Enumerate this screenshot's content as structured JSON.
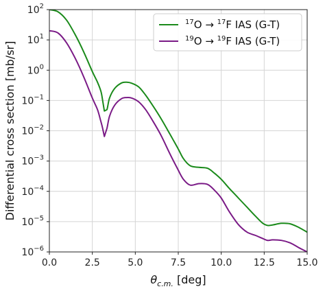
{
  "chart_data": {
    "type": "line",
    "title": "",
    "xlabel_main": "θ",
    "xlabel_sub": "c.m.",
    "xlabel_unit": " [deg]",
    "ylabel": "Differential cross section [mb/sr]",
    "xlim": [
      0,
      15
    ],
    "ylim_log10": [
      -6,
      2
    ],
    "y_scale": "log",
    "grid": true,
    "legend_position": "top-right",
    "x_ticks": [
      "0.0",
      "2.5",
      "5.0",
      "7.5",
      "10.0",
      "12.5",
      "15.0"
    ],
    "x_tick_values": [
      0,
      2.5,
      5,
      7.5,
      10,
      12.5,
      15
    ],
    "y_tick_exponents": [
      -6,
      -5,
      -4,
      -3,
      -2,
      -1,
      0,
      1,
      2
    ],
    "y_tick_base": "10",
    "series": [
      {
        "legend": {
          "m1": "17",
          "a": "O",
          "arrow": " → ",
          "m2": "17",
          "b": "F IAS (G-T)"
        },
        "color": "#1a8a1a",
        "x": [
          0,
          0.5,
          1.0,
          1.5,
          2.0,
          2.5,
          2.8,
          3.0,
          3.1,
          3.2,
          3.35,
          3.5,
          3.8,
          4.2,
          4.5,
          4.8,
          5.2,
          5.6,
          6.0,
          6.5,
          7.0,
          7.5,
          7.8,
          8.2,
          8.7,
          9.2,
          9.6,
          10.0,
          10.5,
          11.0,
          11.5,
          12.0,
          12.4,
          12.7,
          13.0,
          13.5,
          14.0,
          14.5,
          15.0
        ],
        "y": [
          100,
          85,
          45,
          15,
          4,
          0.9,
          0.4,
          0.2,
          0.1,
          0.045,
          0.05,
          0.12,
          0.25,
          0.38,
          0.4,
          0.37,
          0.28,
          0.15,
          0.07,
          0.025,
          0.008,
          0.0025,
          0.0012,
          0.0007,
          0.00062,
          0.00058,
          0.0004,
          0.00025,
          0.00012,
          6e-05,
          3e-05,
          1.5e-05,
          9e-06,
          7.5e-06,
          7.8e-06,
          8.8e-06,
          8.5e-06,
          6.5e-06,
          4.5e-06
        ]
      },
      {
        "legend": {
          "m1": "19",
          "a": "O",
          "arrow": " → ",
          "m2": "19",
          "b": "F IAS (G-T)"
        },
        "color": "#7a1a86",
        "x": [
          0,
          0.5,
          1.0,
          1.5,
          2.0,
          2.5,
          2.8,
          3.0,
          3.1,
          3.2,
          3.35,
          3.5,
          3.8,
          4.2,
          4.5,
          4.8,
          5.2,
          5.6,
          6.0,
          6.5,
          7.0,
          7.5,
          7.8,
          8.2,
          8.7,
          9.2,
          9.6,
          10.0,
          10.5,
          11.0,
          11.5,
          12.0,
          12.4,
          12.7,
          13.0,
          13.5,
          14.0,
          14.5,
          15.0
        ],
        "y": [
          20,
          17,
          8,
          2.5,
          0.6,
          0.12,
          0.05,
          0.02,
          0.012,
          0.0065,
          0.012,
          0.03,
          0.07,
          0.115,
          0.125,
          0.12,
          0.09,
          0.05,
          0.022,
          0.007,
          0.0018,
          0.0005,
          0.00025,
          0.00016,
          0.00018,
          0.00017,
          0.00011,
          6e-05,
          2e-05,
          8e-06,
          4.5e-06,
          3.5e-06,
          2.8e-06,
          2.4e-06,
          2.5e-06,
          2.4e-06,
          2e-06,
          1.4e-06,
          1e-06
        ]
      }
    ]
  }
}
